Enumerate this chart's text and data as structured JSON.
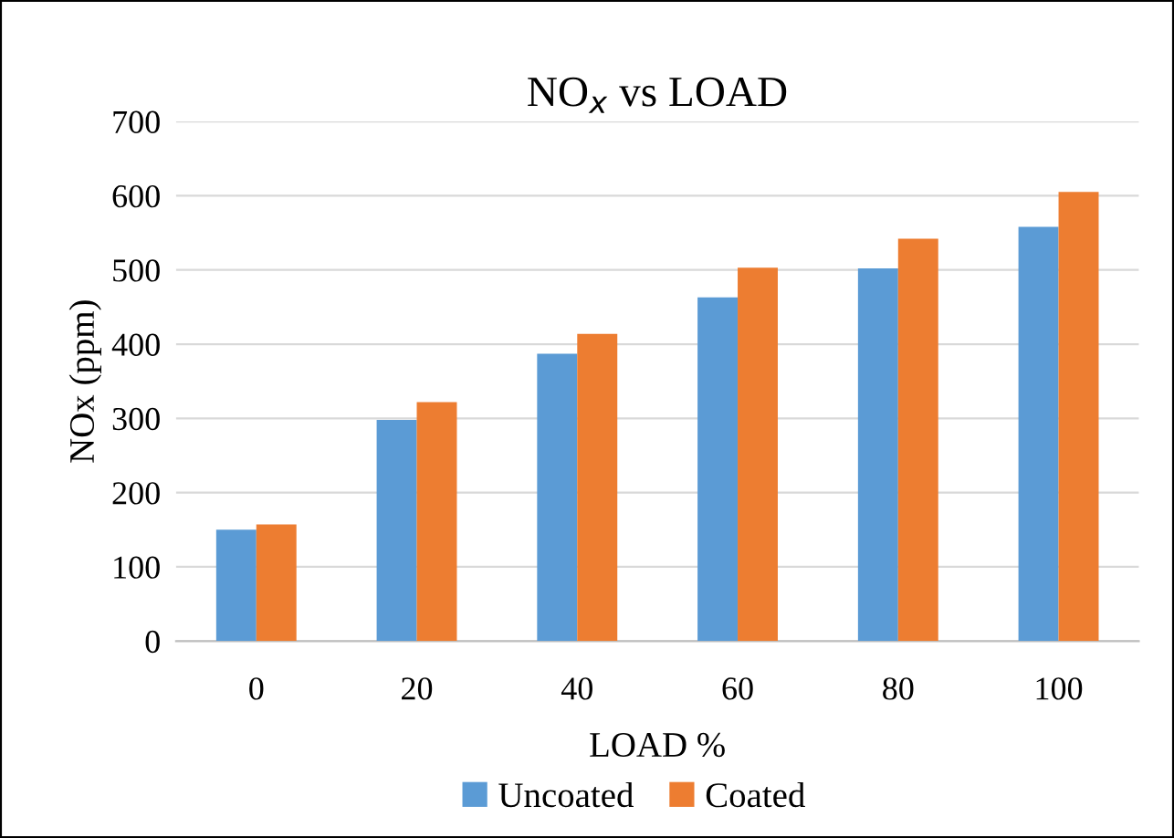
{
  "chart_data": {
    "type": "bar",
    "title": "NO$_{x}$ vs LOAD",
    "xlabel": "LOAD %",
    "ylabel": "NOx (ppm)",
    "categories": [
      "0",
      "20",
      "40",
      "60",
      "80",
      "100"
    ],
    "series": [
      {
        "name": "Uncoated",
        "color": "#5b9bd5",
        "values": [
          150,
          298,
          387,
          463,
          502,
          558
        ]
      },
      {
        "name": "Coated",
        "color": "#ed7d31",
        "values": [
          157,
          322,
          414,
          503,
          542,
          605
        ]
      }
    ],
    "ylim": [
      0,
      700
    ],
    "yticks": [
      0,
      100,
      200,
      300,
      400,
      500,
      600,
      700
    ],
    "grid": "y",
    "legend": "bottom"
  }
}
